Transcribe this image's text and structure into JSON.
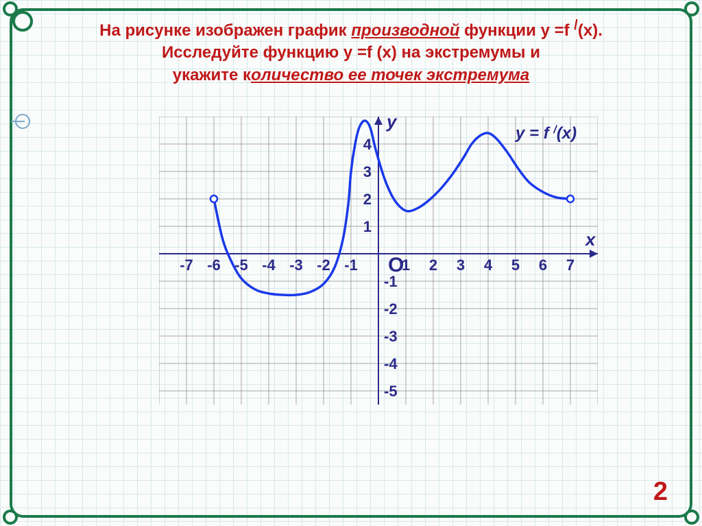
{
  "title": {
    "line1_a": "На рисунке изображен график ",
    "line1_u": "производной",
    "line1_b": " функции  y =f ",
    "line1_sup": "/",
    "line1_c": "(x).",
    "line2": "Исследуйте функцию y =f (x) на экстремумы и",
    "line3_a": "укажите к",
    "line3_u": "оличество ее точек экстремума",
    "fontsize": 24,
    "color": "#c01818"
  },
  "answer": {
    "value": "2",
    "fontsize": 38,
    "color": "#c01818"
  },
  "chart": {
    "type": "line",
    "cell": 40,
    "xlim": [
      -8,
      8
    ],
    "ylim": [
      -5.5,
      5
    ],
    "x_ticks": [
      -7,
      -6,
      -5,
      -4,
      -3,
      -2,
      -1,
      1,
      2,
      3,
      4,
      5,
      6,
      7
    ],
    "y_ticks_pos": [
      1,
      2,
      3,
      4
    ],
    "y_ticks_neg": [
      -1,
      -2,
      -3,
      -4,
      -5
    ],
    "origin_label": "O",
    "x_label": "x",
    "y_label": "y",
    "curve_label": "y = f /(x)",
    "grid_color": "#707070",
    "axis_color": "#2a2a8a",
    "curve_color": "#1a3ae8",
    "curve_width": 3.5,
    "label_color": "#2a2a8a",
    "tick_fontsize": 22,
    "axis_label_fontsize": 26,
    "background": "#fafcfc",
    "open_points": [
      {
        "x": -6,
        "y": 2
      },
      {
        "x": 7,
        "y": 2
      }
    ],
    "curve": [
      {
        "x": -6.0,
        "y": 2.0
      },
      {
        "x": -5.7,
        "y": 0.6
      },
      {
        "x": -5.4,
        "y": -0.2
      },
      {
        "x": -5.0,
        "y": -0.9
      },
      {
        "x": -4.5,
        "y": -1.3
      },
      {
        "x": -4.0,
        "y": -1.45
      },
      {
        "x": -3.5,
        "y": -1.5
      },
      {
        "x": -3.0,
        "y": -1.5
      },
      {
        "x": -2.5,
        "y": -1.4
      },
      {
        "x": -2.0,
        "y": -1.1
      },
      {
        "x": -1.6,
        "y": -0.5
      },
      {
        "x": -1.3,
        "y": 0.5
      },
      {
        "x": -1.1,
        "y": 1.8
      },
      {
        "x": -1.0,
        "y": 3.0
      },
      {
        "x": -0.85,
        "y": 4.0
      },
      {
        "x": -0.7,
        "y": 4.6
      },
      {
        "x": -0.5,
        "y": 4.85
      },
      {
        "x": -0.3,
        "y": 4.6
      },
      {
        "x": -0.1,
        "y": 3.8
      },
      {
        "x": 0.2,
        "y": 2.8
      },
      {
        "x": 0.5,
        "y": 2.1
      },
      {
        "x": 0.8,
        "y": 1.7
      },
      {
        "x": 1.1,
        "y": 1.55
      },
      {
        "x": 1.5,
        "y": 1.7
      },
      {
        "x": 1.9,
        "y": 2.0
      },
      {
        "x": 2.3,
        "y": 2.4
      },
      {
        "x": 2.7,
        "y": 2.9
      },
      {
        "x": 3.1,
        "y": 3.5
      },
      {
        "x": 3.4,
        "y": 4.0
      },
      {
        "x": 3.7,
        "y": 4.3
      },
      {
        "x": 4.0,
        "y": 4.4
      },
      {
        "x": 4.3,
        "y": 4.2
      },
      {
        "x": 4.7,
        "y": 3.7
      },
      {
        "x": 5.1,
        "y": 3.1
      },
      {
        "x": 5.5,
        "y": 2.6
      },
      {
        "x": 6.0,
        "y": 2.25
      },
      {
        "x": 6.5,
        "y": 2.05
      },
      {
        "x": 7.0,
        "y": 2.0
      }
    ]
  }
}
